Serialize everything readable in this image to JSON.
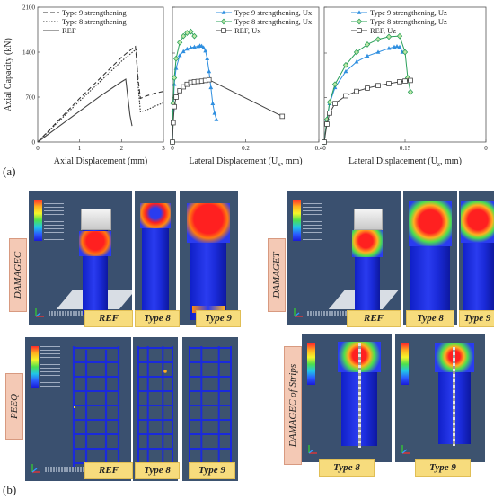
{
  "panel_a_label": "(a)",
  "panel_b_label": "(b)",
  "chart_data": [
    {
      "type": "line",
      "ylabel": "Axial Capacity (kN)",
      "xlabel": "Axial Displacement (mm)",
      "xlim": [
        0,
        3
      ],
      "ylim": [
        0,
        2100
      ],
      "xticks": [
        "0",
        "1",
        "2",
        "3"
      ],
      "yticks": [
        "0",
        "700",
        "1400",
        "2100"
      ],
      "legend_position": "top-left",
      "series": [
        {
          "name": "Type 9 strengthening",
          "style": "dashed",
          "color": "#333333",
          "x": [
            0,
            0.5,
            1.0,
            1.5,
            2.0,
            2.3,
            2.33,
            2.4,
            2.45,
            2.6,
            2.8,
            3.0
          ],
          "y": [
            0,
            340,
            680,
            1000,
            1320,
            1480,
            1490,
            950,
            680,
            720,
            760,
            790
          ]
        },
        {
          "name": "Type 8 strengthening",
          "style": "dotted",
          "color": "#333333",
          "x": [
            0,
            0.5,
            1.0,
            1.5,
            2.0,
            2.3,
            2.35,
            2.4,
            2.45,
            2.6,
            2.8,
            3.0
          ],
          "y": [
            0,
            320,
            640,
            950,
            1260,
            1420,
            1440,
            850,
            470,
            500,
            560,
            610
          ]
        },
        {
          "name": "REF",
          "style": "solid",
          "color": "#444444",
          "x": [
            0,
            0.5,
            1.0,
            1.5,
            2.0,
            2.1,
            2.15,
            2.2,
            2.25
          ],
          "y": [
            0,
            240,
            480,
            720,
            940,
            980,
            700,
            420,
            250
          ]
        }
      ]
    },
    {
      "type": "line",
      "xlabel": "Lateral Displacement (U",
      "xlabel_sub": "x",
      "xlabel_end": ", mm)",
      "xlim": [
        0,
        0.4
      ],
      "ylim": [
        0,
        2100
      ],
      "xticks": [
        "0",
        "0.2",
        "0.4"
      ],
      "legend_position": "top-right",
      "series": [
        {
          "name": "Type 9 strengthening, Ux",
          "color": "#2f8fe0",
          "marker": "triangle",
          "x": [
            0,
            0.002,
            0.005,
            0.01,
            0.02,
            0.03,
            0.04,
            0.05,
            0.06,
            0.07,
            0.075,
            0.08,
            0.085,
            0.09,
            0.095,
            0.1,
            0.105,
            0.11,
            0.115,
            0.12
          ],
          "y": [
            0,
            500,
            900,
            1150,
            1350,
            1410,
            1450,
            1470,
            1480,
            1490,
            1500,
            1495,
            1470,
            1420,
            1300,
            1100,
            850,
            600,
            450,
            350
          ]
        },
        {
          "name": "Type 8 strengthening, Ux",
          "color": "#2aa05a",
          "marker": "diamond",
          "x": [
            0,
            0.002,
            0.005,
            0.01,
            0.02,
            0.03,
            0.04,
            0.05,
            0.06
          ],
          "y": [
            0,
            600,
            1000,
            1300,
            1550,
            1650,
            1700,
            1720,
            1650
          ]
        },
        {
          "name": "REF, Ux",
          "color": "#444444",
          "marker": "square",
          "x": [
            0,
            0.002,
            0.005,
            0.01,
            0.02,
            0.03,
            0.04,
            0.05,
            0.06,
            0.07,
            0.08,
            0.09,
            0.1,
            0.3
          ],
          "y": [
            0,
            300,
            550,
            700,
            800,
            860,
            900,
            930,
            940,
            945,
            950,
            960,
            970,
            400
          ]
        }
      ]
    },
    {
      "type": "line",
      "xlabel": "Lateral Displacement (U",
      "xlabel_sub": "z",
      "xlabel_end": ", mm)",
      "xlim": [
        0,
        0.3
      ],
      "ylim": [
        0,
        2100
      ],
      "xticks": [
        "0",
        "0.15",
        "0"
      ],
      "legend_position": "top-right",
      "series": [
        {
          "name": "Type 9 strengthening, Uz",
          "color": "#2f8fe0",
          "marker": "triangle",
          "x": [
            0,
            0.005,
            0.01,
            0.02,
            0.04,
            0.06,
            0.08,
            0.1,
            0.12,
            0.13,
            0.135,
            0.14,
            0.145
          ],
          "y": [
            0,
            350,
            600,
            850,
            1100,
            1250,
            1340,
            1400,
            1460,
            1480,
            1490,
            1480,
            1400
          ]
        },
        {
          "name": "Type 8 strengthening, Uz",
          "color": "#2aa05a",
          "marker": "diamond",
          "x": [
            0,
            0.005,
            0.01,
            0.02,
            0.04,
            0.06,
            0.08,
            0.1,
            0.12,
            0.14,
            0.15,
            0.155,
            0.16
          ],
          "y": [
            0,
            350,
            620,
            900,
            1200,
            1400,
            1520,
            1600,
            1640,
            1650,
            1400,
            1000,
            780
          ]
        },
        {
          "name": "REF, Uz",
          "color": "#444444",
          "marker": "square",
          "x": [
            0,
            0.005,
            0.01,
            0.02,
            0.04,
            0.06,
            0.08,
            0.1,
            0.12,
            0.14,
            0.15,
            0.16
          ],
          "y": [
            0,
            280,
            450,
            600,
            720,
            790,
            840,
            880,
            910,
            940,
            950,
            960
          ]
        }
      ]
    }
  ],
  "fem": {
    "damagec_label": "DAMAGEC",
    "damaget_label": "DAMAGET",
    "peeq_label": "PEEQ",
    "strips_label": "DAMAGEC of Strips",
    "tags": {
      "ref": "REF",
      "type8": "Type 8",
      "type9": "Type 9",
      "type9_cut": "Type 9"
    }
  }
}
